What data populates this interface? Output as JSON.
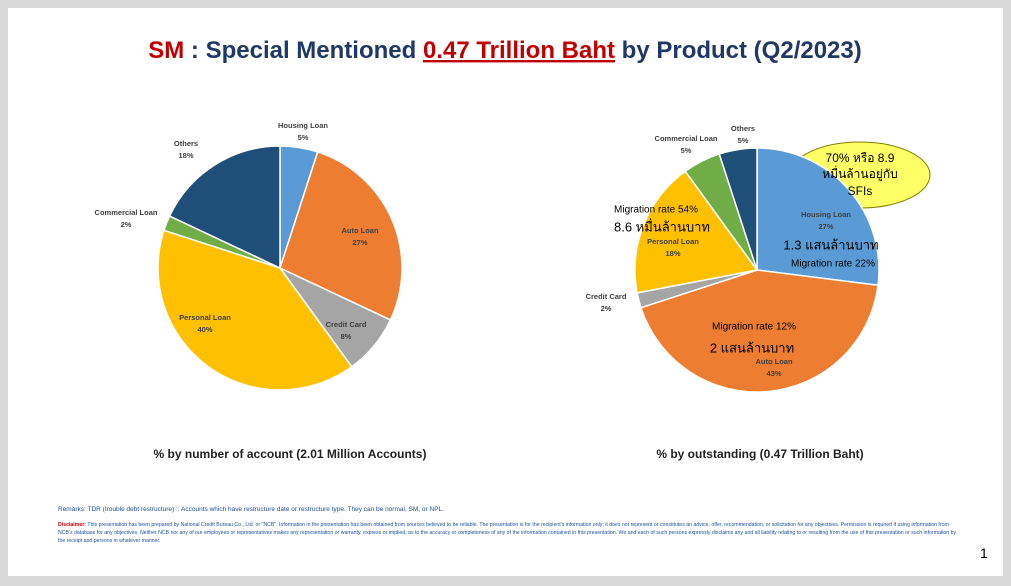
{
  "slide": {
    "title_parts": [
      "SM",
      ":",
      "Special Mentioned",
      "0.47 Trillion Baht",
      "by Product (Q2/2023)"
    ],
    "remarks": "Remarks: TDR (trouble debt restructure) :: Accounts which have restructure date or restructure type. They can be normal, SM, or NPL.",
    "disclaimer_label": "Disclaimer:",
    "disclaimer": "This presentation has been prepared by National Credit Bureau Co., Ltd. or \"NCB\". Information in the presentation has been obtained from sources believed to be reliable. The presentation is for the recipient's information only; it does not represent or constitutes an advice, offer, recommendation, or solicitation for any objectives. Permission is required if using information from NCB's database for any objectives. Neither NCB nor any of our employees or representatives makes any representation or warranty, express or implied, as to the accuracy or completeness of any of the information contained in this presentation. We and each of such persons expressly disclaims any and all liability relating to or resulting from the use of this presentation or such information by the receipt and persons in whatever manner.",
    "page_number": "1"
  },
  "chart_data": [
    {
      "type": "pie",
      "caption": "% by number of account (2.01 Million Accounts)",
      "categories": [
        "Housing Loan",
        "Auto Loan",
        "Credit Card",
        "Personal Loan",
        "Commercial Loan",
        "Others"
      ],
      "values": [
        5,
        27,
        8,
        40,
        2,
        18
      ],
      "value_labels": [
        "5%",
        "27%",
        "8%",
        "40%",
        "2%",
        "18%"
      ],
      "colors": [
        "#5b9bd5",
        "#ed7d31",
        "#a5a5a5",
        "#ffc000",
        "#70ad47",
        "#1f4e79"
      ]
    },
    {
      "type": "pie",
      "caption": "% by outstanding (0.47 Trillion Baht)",
      "categories": [
        "Housing Loan",
        "Auto Loan",
        "Credit Card",
        "Personal Loan",
        "Commercial Loan",
        "Others"
      ],
      "values": [
        27,
        43,
        2,
        18,
        5,
        5
      ],
      "value_labels": [
        "27%",
        "43%",
        "2%",
        "18%",
        "5%",
        "5%"
      ],
      "colors": [
        "#5b9bd5",
        "#ed7d31",
        "#a5a5a5",
        "#ffc000",
        "#70ad47",
        "#1f4e79"
      ],
      "annotations": [
        "70% หรือ 8.9",
        "หมื่นล้านอยู่กับ",
        "SFIs",
        "Migration rate 54%",
        "8.6 หมื่นล้านบาท",
        "1.3 แสนล้านบาท",
        "Migration rate 22%",
        "Migration rate 12%",
        "2 แสนล้านบาท"
      ]
    }
  ]
}
